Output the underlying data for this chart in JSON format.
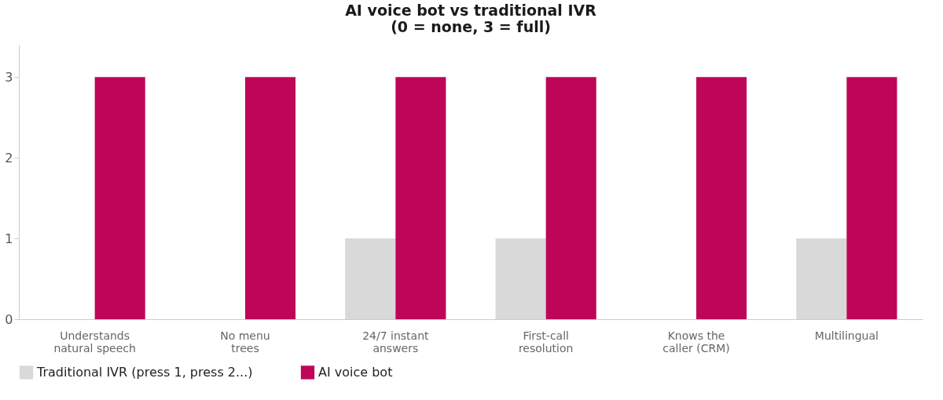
{
  "chart_data": {
    "type": "bar",
    "title": "AI voice bot vs traditional IVR\n(0 = none, 3 = full)",
    "categories": [
      "Understands\nnatural speech",
      "No menu\ntrees",
      "24/7 instant\nanswers",
      "First-call\nresolution",
      "Knows the\ncaller (CRM)",
      "Multilingual"
    ],
    "series": [
      {
        "name": "Traditional IVR (press 1, press 2...)",
        "color": "#d9d9d9",
        "values": [
          0,
          0,
          1,
          1,
          0,
          1
        ]
      },
      {
        "name": "AI voice bot",
        "color": "#be0658",
        "values": [
          3,
          3,
          3,
          3,
          3,
          3
        ]
      }
    ],
    "ylim": [
      0,
      3.4
    ],
    "yticks": [
      0,
      1,
      2,
      3
    ],
    "grid": false,
    "legend": "bottom"
  }
}
